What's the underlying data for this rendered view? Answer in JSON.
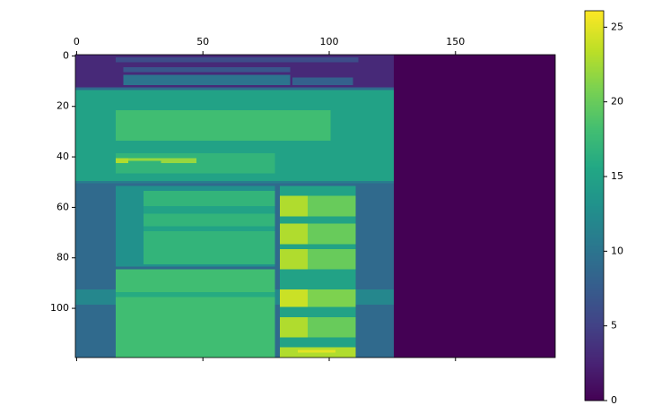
{
  "chart_data": {
    "type": "heatmap",
    "colormap": "viridis",
    "xlim": [
      -0.5,
      189.5
    ],
    "ylim": [
      119.5,
      -0.5
    ],
    "xticks": [
      0,
      50,
      100,
      150
    ],
    "yticks": [
      0,
      20,
      40,
      60,
      80,
      100
    ],
    "clim": [
      0,
      26.1
    ],
    "cticks": [
      0,
      5,
      10,
      15,
      20,
      25
    ],
    "rects": [
      {
        "x": [
          -0.5,
          189.5
        ],
        "y": [
          -0.5,
          119.5
        ],
        "value": 0
      },
      {
        "x": [
          -0.5,
          125.5
        ],
        "y": [
          -0.5,
          12.5
        ],
        "value": 3
      },
      {
        "x": [
          15.5,
          111.5
        ],
        "y": [
          0.5,
          2.5
        ],
        "value": 6
      },
      {
        "x": [
          18.5,
          84.5
        ],
        "y": [
          4.5,
          6.5
        ],
        "value": 7
      },
      {
        "x": [
          18.5,
          84.5
        ],
        "y": [
          7.5,
          11.5
        ],
        "value": 10
      },
      {
        "x": [
          85.5,
          109.5
        ],
        "y": [
          8.5,
          11.5
        ],
        "value": 8
      },
      {
        "x": [
          -0.5,
          125.5
        ],
        "y": [
          12.5,
          13.5
        ],
        "value": 9
      },
      {
        "x": [
          -0.5,
          125.5
        ],
        "y": [
          13.5,
          49.5
        ],
        "value": 15
      },
      {
        "x": [
          15.5,
          100.5
        ],
        "y": [
          21.5,
          33.5
        ],
        "value": 18
      },
      {
        "x": [
          15.5,
          78.5
        ],
        "y": [
          38.5,
          46.5
        ],
        "value": 17
      },
      {
        "x": [
          15.5,
          20.5
        ],
        "y": [
          40.5,
          42.5
        ],
        "value": 23
      },
      {
        "x": [
          20.5,
          33.5
        ],
        "y": [
          40.5,
          41.5
        ],
        "value": 22
      },
      {
        "x": [
          33.5,
          47.5
        ],
        "y": [
          40.5,
          42.5
        ],
        "value": 22
      },
      {
        "x": [
          -0.5,
          125.5
        ],
        "y": [
          49.5,
          50.5
        ],
        "value": 11
      },
      {
        "x": [
          -0.5,
          125.5
        ],
        "y": [
          50.5,
          119.5
        ],
        "value": 9
      },
      {
        "x": [
          15.5,
          78.5
        ],
        "y": [
          51.5,
          83.5
        ],
        "value": 13
      },
      {
        "x": [
          26.5,
          78.5
        ],
        "y": [
          53.5,
          82.5
        ],
        "value": 17
      },
      {
        "x": [
          26.5,
          78.5
        ],
        "y": [
          59.5,
          62.5
        ],
        "value": 15
      },
      {
        "x": [
          26.5,
          78.5
        ],
        "y": [
          67.5,
          69.5
        ],
        "value": 15
      },
      {
        "x": [
          -0.5,
          125.5
        ],
        "y": [
          92.5,
          98.5
        ],
        "value": 12
      },
      {
        "x": [
          15.5,
          78.5
        ],
        "y": [
          84.5,
          119.5
        ],
        "value": 18
      },
      {
        "x": [
          15.5,
          78.5
        ],
        "y": [
          93.5,
          95.5
        ],
        "value": 16
      },
      {
        "x": [
          80.5,
          110.5
        ],
        "y": [
          51.5,
          119.5
        ],
        "value": 15
      },
      {
        "x": [
          80.5,
          91.5
        ],
        "y": [
          55.5,
          63.5
        ],
        "value": 23
      },
      {
        "x": [
          91.5,
          110.5
        ],
        "y": [
          55.5,
          63.5
        ],
        "value": 20
      },
      {
        "x": [
          80.5,
          91.5
        ],
        "y": [
          66.5,
          74.5
        ],
        "value": 23
      },
      {
        "x": [
          91.5,
          110.5
        ],
        "y": [
          66.5,
          74.5
        ],
        "value": 20
      },
      {
        "x": [
          80.5,
          91.5
        ],
        "y": [
          76.5,
          84.5
        ],
        "value": 23
      },
      {
        "x": [
          91.5,
          110.5
        ],
        "y": [
          76.5,
          84.5
        ],
        "value": 20
      },
      {
        "x": [
          80.5,
          91.5
        ],
        "y": [
          92.5,
          99.5
        ],
        "value": 24
      },
      {
        "x": [
          91.5,
          110.5
        ],
        "y": [
          92.5,
          99.5
        ],
        "value": 21
      },
      {
        "x": [
          80.5,
          91.5
        ],
        "y": [
          103.5,
          111.5
        ],
        "value": 23
      },
      {
        "x": [
          91.5,
          110.5
        ],
        "y": [
          103.5,
          111.5
        ],
        "value": 20
      },
      {
        "x": [
          80.5,
          110.5
        ],
        "y": [
          115.5,
          119.5
        ],
        "value": 23
      },
      {
        "x": [
          87.5,
          102.5
        ],
        "y": [
          116.5,
          117.5
        ],
        "value": 25
      }
    ]
  }
}
